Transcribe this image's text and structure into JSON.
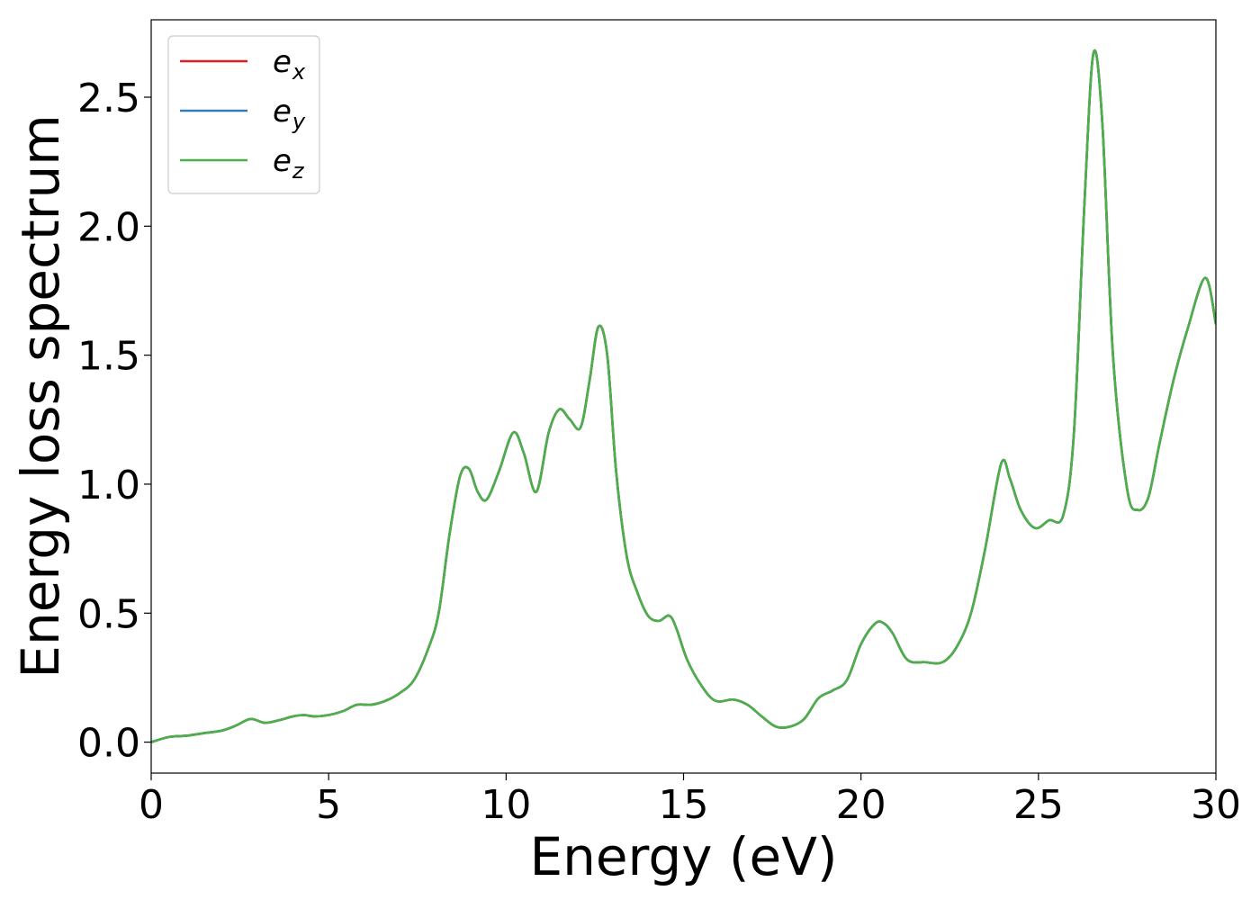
{
  "chart_data": {
    "type": "line",
    "xlabel": "Energy (eV)",
    "ylabel": "Energy loss spectrum",
    "xlim": [
      0,
      30
    ],
    "ylim": [
      -0.12,
      2.8
    ],
    "xticks": [
      0,
      5,
      10,
      15,
      20,
      25,
      30
    ],
    "xtick_labels": [
      "0",
      "5",
      "10",
      "15",
      "20",
      "25",
      "30"
    ],
    "yticks": [
      0.0,
      0.5,
      1.0,
      1.5,
      2.0,
      2.5
    ],
    "ytick_labels": [
      "0.0",
      "0.5",
      "1.0",
      "1.5",
      "2.0",
      "2.5"
    ],
    "grid": false,
    "legend_position": "top-left",
    "series": [
      {
        "name": "e",
        "subscript": "x",
        "color": "#e41a1c"
      },
      {
        "name": "e",
        "subscript": "y",
        "color": "#377eb8"
      },
      {
        "name": "e",
        "subscript": "z",
        "color": "#4daf4a"
      }
    ],
    "x": [
      0,
      0.5,
      1,
      1.5,
      2,
      2.4,
      2.8,
      3.2,
      3.6,
      4,
      4.3,
      4.6,
      5,
      5.4,
      5.8,
      6.2,
      6.6,
      7,
      7.4,
      7.8,
      8.1,
      8.4,
      8.7,
      8.95,
      9.2,
      9.45,
      9.8,
      10.2,
      10.5,
      10.85,
      11.2,
      11.5,
      11.8,
      12.1,
      12.35,
      12.6,
      12.85,
      13.1,
      13.4,
      13.7,
      14,
      14.3,
      14.6,
      14.8,
      15.1,
      15.5,
      15.9,
      16.4,
      16.8,
      17.2,
      17.6,
      18,
      18.4,
      18.8,
      19.2,
      19.6,
      20,
      20.4,
      20.65,
      20.9,
      21.3,
      21.8,
      22.3,
      22.7,
      23.1,
      23.5,
      23.95,
      24.2,
      24.5,
      24.9,
      25.3,
      25.7,
      26.0,
      26.3,
      26.55,
      26.8,
      27.1,
      27.5,
      27.8,
      28.1,
      28.4,
      28.8,
      29.2,
      29.7,
      30
    ],
    "values": [
      0.0,
      0.02,
      0.025,
      0.035,
      0.045,
      0.065,
      0.09,
      0.075,
      0.085,
      0.1,
      0.105,
      0.1,
      0.105,
      0.12,
      0.145,
      0.145,
      0.16,
      0.19,
      0.24,
      0.36,
      0.5,
      0.8,
      1.03,
      1.06,
      0.97,
      0.94,
      1.05,
      1.2,
      1.12,
      0.97,
      1.2,
      1.29,
      1.25,
      1.22,
      1.4,
      1.61,
      1.5,
      1.05,
      0.72,
      0.58,
      0.49,
      0.47,
      0.49,
      0.44,
      0.32,
      0.22,
      0.16,
      0.165,
      0.145,
      0.1,
      0.06,
      0.06,
      0.09,
      0.17,
      0.2,
      0.24,
      0.38,
      0.46,
      0.46,
      0.42,
      0.32,
      0.31,
      0.31,
      0.37,
      0.5,
      0.75,
      1.08,
      1.02,
      0.9,
      0.83,
      0.86,
      0.88,
      1.2,
      2.1,
      2.67,
      2.4,
      1.5,
      0.98,
      0.9,
      0.95,
      1.15,
      1.4,
      1.6,
      1.8,
      1.62
    ]
  }
}
